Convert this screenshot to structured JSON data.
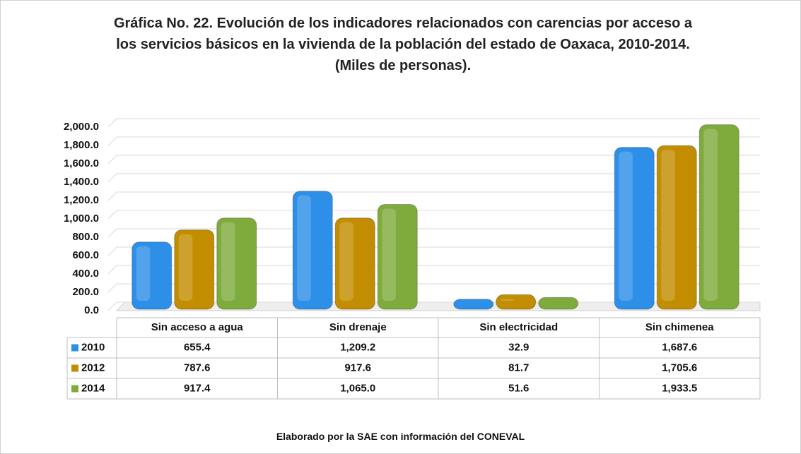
{
  "chart_data": {
    "type": "bar",
    "title": "Gráfica No. 22. Evolución de los indicadores relacionados con carencias por acceso a los servicios básicos en la vivienda de la población del estado de Oaxaca, 2010-2014. (Miles de personas).",
    "categories": [
      "Sin acceso a agua",
      "Sin drenaje",
      "Sin electricidad",
      "Sin chimenea"
    ],
    "series": [
      {
        "name": "2010",
        "color": "#2e8fe8",
        "values": [
          655.4,
          1209.2,
          32.9,
          1687.6
        ],
        "value_labels": [
          "655.4",
          "1,209.2",
          "32.9",
          "1,687.6"
        ]
      },
      {
        "name": "2012",
        "color": "#c28d00",
        "values": [
          787.6,
          917.6,
          81.7,
          1705.6
        ],
        "value_labels": [
          "787.6",
          "917.6",
          "81.7",
          "1,705.6"
        ]
      },
      {
        "name": "2014",
        "color": "#7fab3c",
        "values": [
          917.4,
          1065.0,
          51.6,
          1933.5
        ],
        "value_labels": [
          "917.4",
          "1,065.0",
          "51.6",
          "1,933.5"
        ]
      }
    ],
    "ylim": [
      0,
      2000
    ],
    "yticks": [
      {
        "value": 0,
        "label": "0.0"
      },
      {
        "value": 200,
        "label": "200.0"
      },
      {
        "value": 400,
        "label": "400.0"
      },
      {
        "value": 600,
        "label": "600.0"
      },
      {
        "value": 800,
        "label": "800.0"
      },
      {
        "value": 1000,
        "label": "1,000.0"
      },
      {
        "value": 1200,
        "label": "1,200.0"
      },
      {
        "value": 1400,
        "label": "1,400.0"
      },
      {
        "value": 1600,
        "label": "1,600.0"
      },
      {
        "value": 1800,
        "label": "1,800.0"
      },
      {
        "value": 2000,
        "label": "2,000.0"
      }
    ],
    "grid": true,
    "source": "Elaborado por la SAE con información del CONEVAL"
  }
}
